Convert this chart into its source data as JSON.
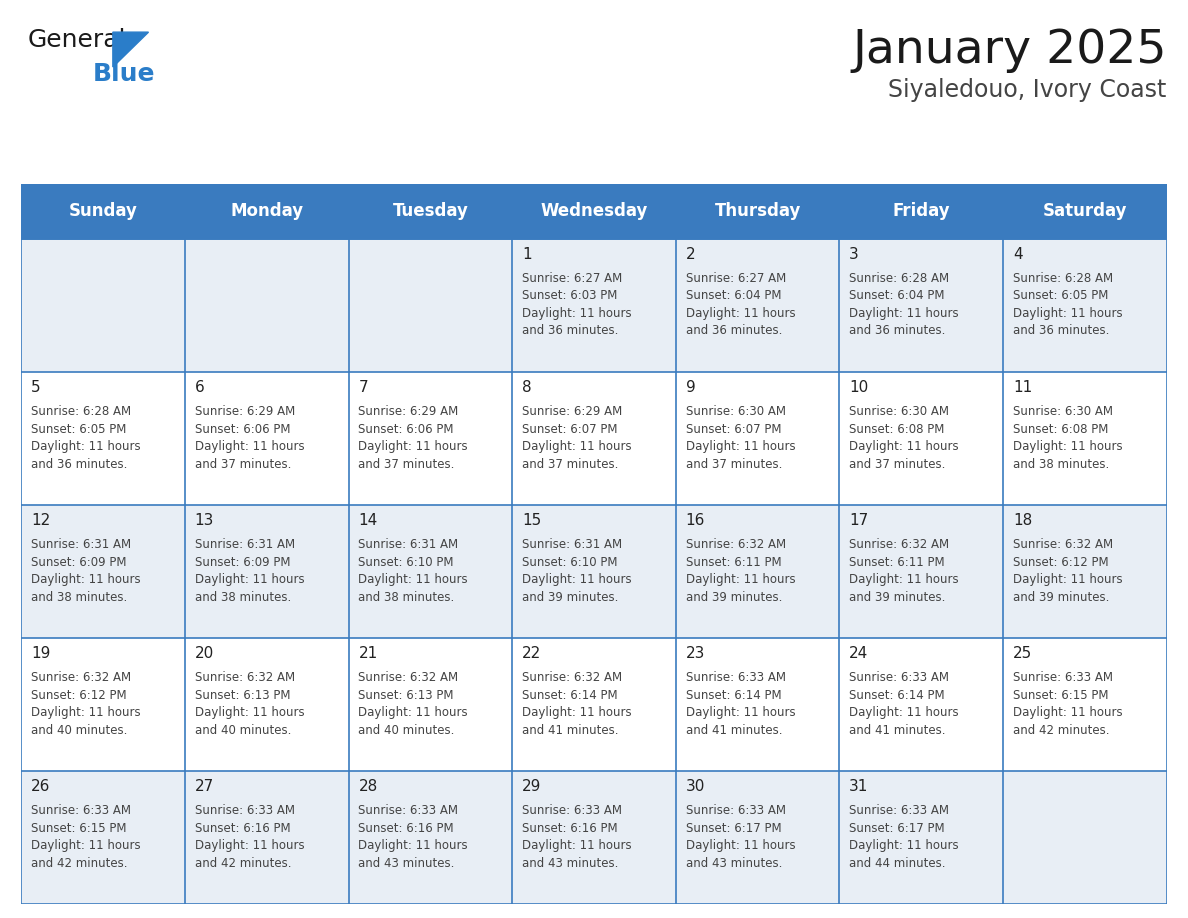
{
  "title": "January 2025",
  "subtitle": "Siyaledouo, Ivory Coast",
  "header_bg": "#3a7bbf",
  "header_text": "#ffffff",
  "day_names": [
    "Sunday",
    "Monday",
    "Tuesday",
    "Wednesday",
    "Thursday",
    "Friday",
    "Saturday"
  ],
  "grid_line_color": "#3a7bbf",
  "row0_bg": "#e8eef5",
  "row1_bg": "#ffffff",
  "row2_bg": "#e8eef5",
  "row3_bg": "#ffffff",
  "row4_bg": "#e8eef5",
  "day_num_color": "#222222",
  "cell_text_color": "#444444",
  "calendar": [
    [
      {
        "day": 0,
        "text": ""
      },
      {
        "day": 0,
        "text": ""
      },
      {
        "day": 0,
        "text": ""
      },
      {
        "day": 1,
        "text": "Sunrise: 6:27 AM\nSunset: 6:03 PM\nDaylight: 11 hours\nand 36 minutes."
      },
      {
        "day": 2,
        "text": "Sunrise: 6:27 AM\nSunset: 6:04 PM\nDaylight: 11 hours\nand 36 minutes."
      },
      {
        "day": 3,
        "text": "Sunrise: 6:28 AM\nSunset: 6:04 PM\nDaylight: 11 hours\nand 36 minutes."
      },
      {
        "day": 4,
        "text": "Sunrise: 6:28 AM\nSunset: 6:05 PM\nDaylight: 11 hours\nand 36 minutes."
      }
    ],
    [
      {
        "day": 5,
        "text": "Sunrise: 6:28 AM\nSunset: 6:05 PM\nDaylight: 11 hours\nand 36 minutes."
      },
      {
        "day": 6,
        "text": "Sunrise: 6:29 AM\nSunset: 6:06 PM\nDaylight: 11 hours\nand 37 minutes."
      },
      {
        "day": 7,
        "text": "Sunrise: 6:29 AM\nSunset: 6:06 PM\nDaylight: 11 hours\nand 37 minutes."
      },
      {
        "day": 8,
        "text": "Sunrise: 6:29 AM\nSunset: 6:07 PM\nDaylight: 11 hours\nand 37 minutes."
      },
      {
        "day": 9,
        "text": "Sunrise: 6:30 AM\nSunset: 6:07 PM\nDaylight: 11 hours\nand 37 minutes."
      },
      {
        "day": 10,
        "text": "Sunrise: 6:30 AM\nSunset: 6:08 PM\nDaylight: 11 hours\nand 37 minutes."
      },
      {
        "day": 11,
        "text": "Sunrise: 6:30 AM\nSunset: 6:08 PM\nDaylight: 11 hours\nand 38 minutes."
      }
    ],
    [
      {
        "day": 12,
        "text": "Sunrise: 6:31 AM\nSunset: 6:09 PM\nDaylight: 11 hours\nand 38 minutes."
      },
      {
        "day": 13,
        "text": "Sunrise: 6:31 AM\nSunset: 6:09 PM\nDaylight: 11 hours\nand 38 minutes."
      },
      {
        "day": 14,
        "text": "Sunrise: 6:31 AM\nSunset: 6:10 PM\nDaylight: 11 hours\nand 38 minutes."
      },
      {
        "day": 15,
        "text": "Sunrise: 6:31 AM\nSunset: 6:10 PM\nDaylight: 11 hours\nand 39 minutes."
      },
      {
        "day": 16,
        "text": "Sunrise: 6:32 AM\nSunset: 6:11 PM\nDaylight: 11 hours\nand 39 minutes."
      },
      {
        "day": 17,
        "text": "Sunrise: 6:32 AM\nSunset: 6:11 PM\nDaylight: 11 hours\nand 39 minutes."
      },
      {
        "day": 18,
        "text": "Sunrise: 6:32 AM\nSunset: 6:12 PM\nDaylight: 11 hours\nand 39 minutes."
      }
    ],
    [
      {
        "day": 19,
        "text": "Sunrise: 6:32 AM\nSunset: 6:12 PM\nDaylight: 11 hours\nand 40 minutes."
      },
      {
        "day": 20,
        "text": "Sunrise: 6:32 AM\nSunset: 6:13 PM\nDaylight: 11 hours\nand 40 minutes."
      },
      {
        "day": 21,
        "text": "Sunrise: 6:32 AM\nSunset: 6:13 PM\nDaylight: 11 hours\nand 40 minutes."
      },
      {
        "day": 22,
        "text": "Sunrise: 6:32 AM\nSunset: 6:14 PM\nDaylight: 11 hours\nand 41 minutes."
      },
      {
        "day": 23,
        "text": "Sunrise: 6:33 AM\nSunset: 6:14 PM\nDaylight: 11 hours\nand 41 minutes."
      },
      {
        "day": 24,
        "text": "Sunrise: 6:33 AM\nSunset: 6:14 PM\nDaylight: 11 hours\nand 41 minutes."
      },
      {
        "day": 25,
        "text": "Sunrise: 6:33 AM\nSunset: 6:15 PM\nDaylight: 11 hours\nand 42 minutes."
      }
    ],
    [
      {
        "day": 26,
        "text": "Sunrise: 6:33 AM\nSunset: 6:15 PM\nDaylight: 11 hours\nand 42 minutes."
      },
      {
        "day": 27,
        "text": "Sunrise: 6:33 AM\nSunset: 6:16 PM\nDaylight: 11 hours\nand 42 minutes."
      },
      {
        "day": 28,
        "text": "Sunrise: 6:33 AM\nSunset: 6:16 PM\nDaylight: 11 hours\nand 43 minutes."
      },
      {
        "day": 29,
        "text": "Sunrise: 6:33 AM\nSunset: 6:16 PM\nDaylight: 11 hours\nand 43 minutes."
      },
      {
        "day": 30,
        "text": "Sunrise: 6:33 AM\nSunset: 6:17 PM\nDaylight: 11 hours\nand 43 minutes."
      },
      {
        "day": 31,
        "text": "Sunrise: 6:33 AM\nSunset: 6:17 PM\nDaylight: 11 hours\nand 44 minutes."
      },
      {
        "day": 0,
        "text": ""
      }
    ]
  ],
  "logo_general_color": "#1a1a1a",
  "logo_blue_color": "#2a7dc9",
  "title_fontsize": 34,
  "subtitle_fontsize": 17,
  "header_fontsize": 12,
  "day_num_fontsize": 11,
  "cell_text_fontsize": 8.5
}
